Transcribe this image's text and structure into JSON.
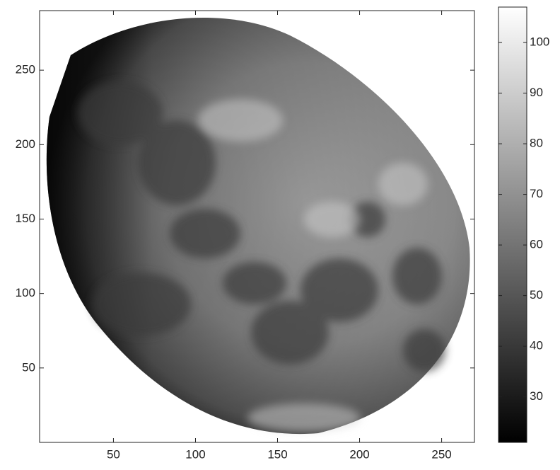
{
  "chart_data": {
    "type": "heatmap",
    "colormap": "gray",
    "xlim": [
      5,
      270
    ],
    "ylim": [
      0,
      290
    ],
    "xticks": [
      50,
      100,
      150,
      200,
      250
    ],
    "yticks": [
      50,
      100,
      150,
      200,
      250
    ],
    "colorbar": {
      "clim": [
        21,
        107
      ],
      "ticks": [
        30,
        40,
        50,
        60,
        70,
        80,
        90,
        100
      ]
    }
  }
}
